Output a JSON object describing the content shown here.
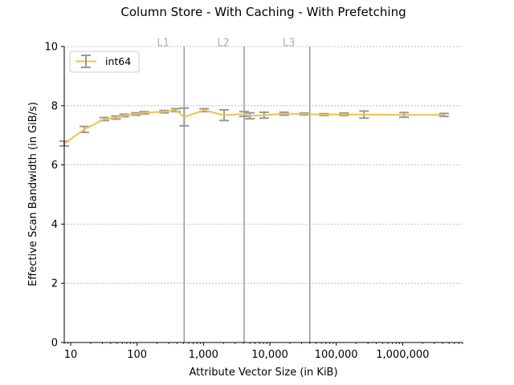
{
  "chart_data": {
    "type": "line",
    "title": "Column Store - With Caching - With Prefetching",
    "xlabel": "Attribute Vector Size (in KiB)",
    "ylabel": "Effective Scan Bandwidth (in GiB/s)",
    "x_scale": "log",
    "xlim": [
      8,
      8000000
    ],
    "ylim": [
      0,
      10
    ],
    "x_ticks": [
      {
        "value": 10,
        "label": "10"
      },
      {
        "value": 100,
        "label": "100"
      },
      {
        "value": 1000,
        "label": "1,000"
      },
      {
        "value": 10000,
        "label": "10,000"
      },
      {
        "value": 100000,
        "label": "100,000"
      },
      {
        "value": 1000000,
        "label": "1,000,000"
      }
    ],
    "y_ticks": [
      {
        "value": 0,
        "label": "0"
      },
      {
        "value": 2,
        "label": "2"
      },
      {
        "value": 4,
        "label": "4"
      },
      {
        "value": 6,
        "label": "6"
      },
      {
        "value": 8,
        "label": "8"
      },
      {
        "value": 10,
        "label": "10"
      }
    ],
    "grid": "y-only, dashed",
    "legend_position": "top-left",
    "cache_lines": [
      {
        "label": "L1",
        "x": 512
      },
      {
        "label": "L2",
        "x": 4096
      },
      {
        "label": "L3",
        "x": 40000
      }
    ],
    "series": [
      {
        "name": "int64",
        "color": "#f2c14e",
        "error_color": "#999999",
        "points": [
          {
            "x": 8,
            "y": 6.72,
            "err": 0.08
          },
          {
            "x": 16,
            "y": 7.2,
            "err": 0.1
          },
          {
            "x": 32,
            "y": 7.55,
            "err": 0.05
          },
          {
            "x": 48,
            "y": 7.6,
            "err": 0.05
          },
          {
            "x": 64,
            "y": 7.67,
            "err": 0.04
          },
          {
            "x": 96,
            "y": 7.72,
            "err": 0.04
          },
          {
            "x": 128,
            "y": 7.76,
            "err": 0.04
          },
          {
            "x": 256,
            "y": 7.8,
            "err": 0.04
          },
          {
            "x": 384,
            "y": 7.85,
            "err": 0.05
          },
          {
            "x": 512,
            "y": 7.62,
            "err": 0.3
          },
          {
            "x": 1024,
            "y": 7.85,
            "err": 0.05
          },
          {
            "x": 2048,
            "y": 7.68,
            "err": 0.18
          },
          {
            "x": 4096,
            "y": 7.72,
            "err": 0.08
          },
          {
            "x": 5000,
            "y": 7.66,
            "err": 0.1
          },
          {
            "x": 8192,
            "y": 7.68,
            "err": 0.1
          },
          {
            "x": 16384,
            "y": 7.73,
            "err": 0.05
          },
          {
            "x": 32768,
            "y": 7.72,
            "err": 0.03
          },
          {
            "x": 65536,
            "y": 7.7,
            "err": 0.03
          },
          {
            "x": 131072,
            "y": 7.71,
            "err": 0.04
          },
          {
            "x": 262144,
            "y": 7.7,
            "err": 0.12
          },
          {
            "x": 1048576,
            "y": 7.69,
            "err": 0.08
          },
          {
            "x": 4194304,
            "y": 7.69,
            "err": 0.05
          }
        ]
      }
    ]
  }
}
